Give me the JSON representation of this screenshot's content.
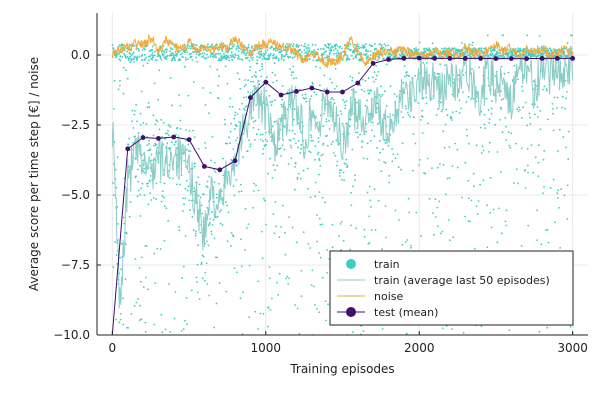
{
  "chart_data": {
    "type": "scatter",
    "xlabel": "Training episodes",
    "ylabel": "Average score per time step [€] / noise",
    "xlim": [
      -100,
      3100
    ],
    "ylim": [
      -10,
      1.5
    ],
    "x_ticks": [
      0,
      1000,
      2000,
      3000
    ],
    "x_tick_labels": [
      "0",
      "1000",
      "2000",
      "3000"
    ],
    "y_ticks": [
      0,
      -2.5,
      -5,
      -7.5,
      -10
    ],
    "y_tick_labels": [
      "0.0",
      "−2.5",
      "−5.0",
      "−7.5",
      "−10.0"
    ],
    "grid": true,
    "legend_position": "bottom-right",
    "colors": {
      "train": "#3ccfbe",
      "train_avg": "#8ccdc7",
      "noise": "#f2a93b",
      "test": "#3f0f6e"
    },
    "series": [
      {
        "name": "train",
        "kind": "scatter",
        "x_range": [
          1,
          3000
        ],
        "note_points": "dense cloud of individual episode scores between -10 and 0.5"
      },
      {
        "name": "train (average last 50 episodes)",
        "kind": "line",
        "x": [
          0,
          50,
          100,
          150,
          200,
          250,
          300,
          350,
          400,
          450,
          500,
          550,
          600,
          650,
          700,
          750,
          800,
          850,
          900,
          950,
          1000,
          1050,
          1100,
          1150,
          1200,
          1250,
          1300,
          1350,
          1400,
          1450,
          1500,
          1550,
          1600,
          1650,
          1700,
          1750,
          1800,
          1850,
          1900,
          1950,
          2000,
          2050,
          2100,
          2150,
          2200,
          2250,
          2300,
          2350,
          2400,
          2450,
          2500,
          2550,
          2600,
          2650,
          2700,
          2750,
          2800,
          2850,
          2900,
          2950,
          3000
        ],
        "y": [
          -2.5,
          -9.0,
          -4.5,
          -3.5,
          -3.8,
          -4.2,
          -3.6,
          -4.0,
          -3.4,
          -3.8,
          -4.2,
          -5.2,
          -6.5,
          -4.8,
          -5.6,
          -4.2,
          -3.6,
          -2.8,
          -1.8,
          -1.5,
          -2.0,
          -3.2,
          -2.6,
          -2.0,
          -1.6,
          -3.0,
          -2.0,
          -2.6,
          -1.4,
          -2.2,
          -3.5,
          -2.1,
          -1.8,
          -2.4,
          -1.6,
          -2.2,
          -3.0,
          -2.0,
          -0.9,
          -1.6,
          -0.6,
          -1.0,
          -0.8,
          -1.4,
          -0.7,
          -1.2,
          -0.5,
          -0.9,
          -1.6,
          -0.5,
          -1.1,
          -0.6,
          -1.8,
          -0.7,
          -0.4,
          -1.2,
          -0.6,
          -0.9,
          -0.4,
          -0.6,
          -0.3
        ]
      },
      {
        "name": "noise",
        "kind": "line",
        "x": [
          0,
          50,
          100,
          150,
          200,
          250,
          300,
          350,
          400,
          450,
          500,
          550,
          600,
          650,
          700,
          750,
          800,
          850,
          900,
          950,
          1000,
          1050,
          1100,
          1150,
          1200,
          1250,
          1300,
          1350,
          1400,
          1450,
          1500,
          1550,
          1600,
          1650,
          1700,
          1750,
          1800,
          1850,
          1900,
          1950,
          2000,
          2050,
          2100,
          2150,
          2200,
          2250,
          2300,
          2350,
          2400,
          2450,
          2500,
          2550,
          2600,
          2650,
          2700,
          2750,
          2800,
          2850,
          2900,
          2950,
          3000
        ],
        "y": [
          0.1,
          0.2,
          0.3,
          0.4,
          0.35,
          0.6,
          0.2,
          0.5,
          0.3,
          0.25,
          0.45,
          0.1,
          0.3,
          0.15,
          0.4,
          0.2,
          0.6,
          0.3,
          0.1,
          0.3,
          0.4,
          0.5,
          0.2,
          0.3,
          0.0,
          -0.2,
          0.1,
          -0.1,
          -0.3,
          -0.2,
          -0.1,
          0.6,
          0.1,
          -0.3,
          -0.1,
          0.1,
          0.2,
          0.1,
          0.2,
          0.0,
          0.1,
          -0.1,
          0.2,
          0.0,
          0.1,
          -0.1,
          0.3,
          0.1,
          0.0,
          0.2,
          0.4,
          0.1,
          0.3,
          0.0,
          0.2,
          0.1,
          0.3,
          0.0,
          0.1,
          0.2,
          0.1
        ]
      },
      {
        "name": "test (mean)",
        "kind": "line+markers",
        "x": [
          0,
          100,
          200,
          300,
          400,
          500,
          600,
          700,
          800,
          900,
          1000,
          1100,
          1200,
          1300,
          1400,
          1500,
          1600,
          1700,
          1800,
          1900,
          2000,
          2100,
          2200,
          2300,
          2400,
          2500,
          2600,
          2700,
          2800,
          2900,
          3000
        ],
        "y": [
          -10.0,
          -3.35,
          -2.95,
          -2.98,
          -2.93,
          -3.02,
          -3.98,
          -4.1,
          -3.78,
          -1.52,
          -0.97,
          -1.43,
          -1.3,
          -1.18,
          -1.32,
          -1.32,
          -1.0,
          -0.3,
          -0.16,
          -0.12,
          -0.11,
          -0.12,
          -0.12,
          -0.12,
          -0.12,
          -0.13,
          -0.13,
          -0.13,
          -0.12,
          -0.12,
          -0.12
        ]
      }
    ]
  }
}
